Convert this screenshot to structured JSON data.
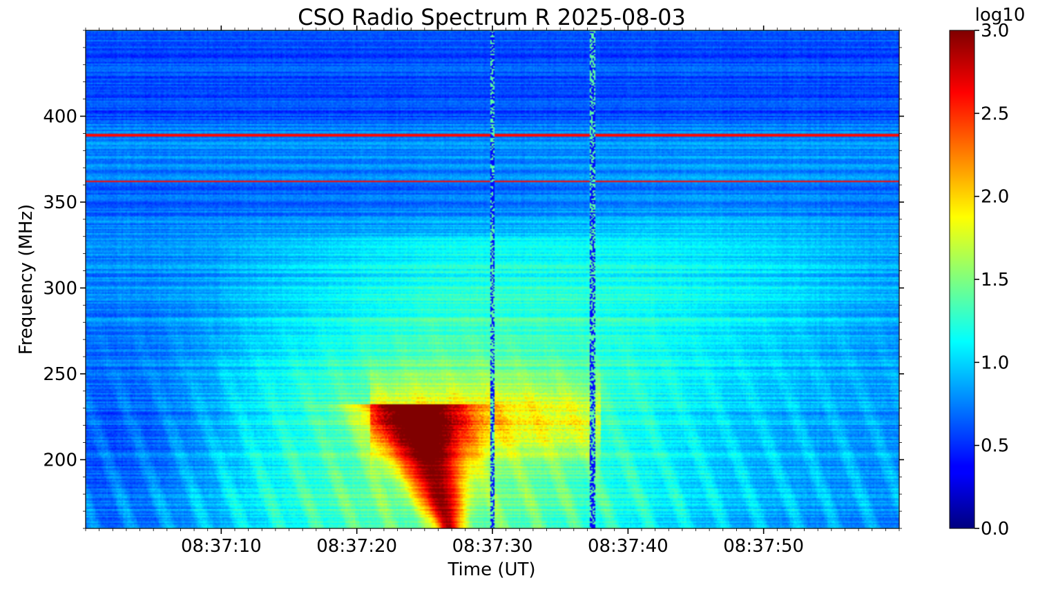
{
  "chart_data": {
    "type": "heatmap",
    "title": "CSO Radio Spectrum R 2025-08-03",
    "xlabel": "Time (UT)",
    "ylabel": "Frequency (MHz)",
    "colorbar_label": "log10",
    "colormap": "jet",
    "x_range": [
      "08:37:00",
      "08:38:00"
    ],
    "xlim_seconds": [
      0,
      60
    ],
    "x_ticks": [
      {
        "label": "08:37:10",
        "seconds": 10
      },
      {
        "label": "08:37:20",
        "seconds": 20
      },
      {
        "label": "08:37:30",
        "seconds": 30
      },
      {
        "label": "08:37:40",
        "seconds": 40
      },
      {
        "label": "08:37:50",
        "seconds": 50
      }
    ],
    "ylim": [
      160,
      450
    ],
    "y_ticks": [
      200,
      250,
      300,
      350,
      400
    ],
    "clim": [
      0.0,
      3.0
    ],
    "colorbar_ticks": [
      "0.0",
      "0.5",
      "1.0",
      "1.5",
      "2.0",
      "2.5",
      "3.0"
    ],
    "features": [
      {
        "type": "burst_core",
        "t": 26.8,
        "f_low": 160,
        "f_high": 232,
        "log10": 2.8
      },
      {
        "type": "emission_band",
        "t_start": 21,
        "t_end": 38,
        "f_low": 205,
        "f_high": 240,
        "log10": 2.2
      },
      {
        "type": "broad_enhancement",
        "t_start": 14,
        "t_end": 40,
        "f_low": 160,
        "f_high": 330,
        "log10": 1.8
      },
      {
        "type": "rfi_line",
        "f": 362
      },
      {
        "type": "rfi_line",
        "f": 389
      },
      {
        "type": "rfi_column",
        "t": 30.0
      },
      {
        "type": "rfi_column",
        "t": 37.4
      }
    ]
  }
}
